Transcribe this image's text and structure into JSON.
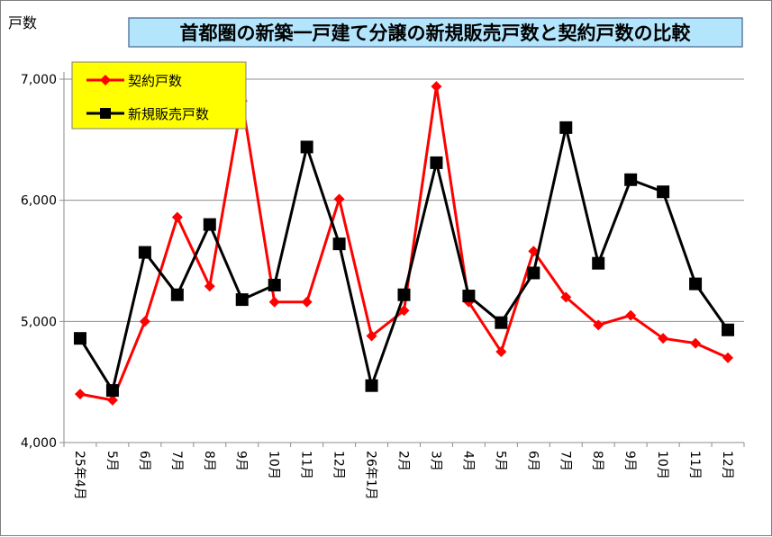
{
  "chart_data": {
    "type": "line",
    "title": "首都圏の新築一戸建て分譲の新規販売戸数と契約戸数の比較",
    "ylabel": "戸数",
    "xlabel": "",
    "ylim": [
      4000,
      7000
    ],
    "yticks": [
      "4,000",
      "5,000",
      "6,000",
      "7,000"
    ],
    "categories": [
      "25年4月",
      "5月",
      "6月",
      "7月",
      "8月",
      "9月",
      "10月",
      "11月",
      "12月",
      "26年1月",
      "2月",
      "3月",
      "4月",
      "5月",
      "6月",
      "7月",
      "8月",
      "9月",
      "10月",
      "11月",
      "12月"
    ],
    "series": [
      {
        "name": "契約戸数",
        "color": "#ff0000",
        "marker": "diamond",
        "values": [
          4400,
          4350,
          5000,
          5860,
          5290,
          6820,
          5160,
          5160,
          6010,
          4880,
          5090,
          6940,
          5160,
          4750,
          5580,
          5200,
          4970,
          5050,
          4860,
          4820,
          4700
        ]
      },
      {
        "name": "新規販売戸数",
        "color": "#000000",
        "marker": "square",
        "values": [
          4860,
          4430,
          5570,
          5220,
          5800,
          5180,
          5300,
          6440,
          5640,
          4470,
          5220,
          6310,
          5210,
          4990,
          5400,
          6600,
          5480,
          6170,
          6070,
          5310,
          4930
        ]
      }
    ],
    "grid": true,
    "legend_position": "top-left",
    "title_style": {
      "background": "#b3e5fc",
      "border": "#5f7fa0",
      "text_color": "#000000"
    },
    "legend_style": {
      "background": "#ffff00",
      "border": "#7f7f7f"
    }
  }
}
